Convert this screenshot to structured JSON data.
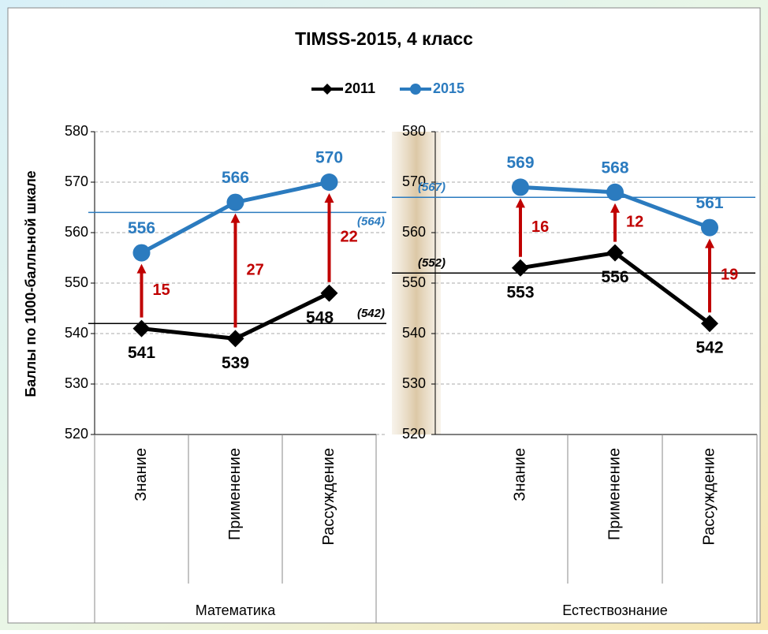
{
  "chart_data": [
    {
      "type": "line",
      "title": "TIMSS-2015, 4 класс",
      "y_label": "Баллы по 1000-балльной шкале",
      "group": "Математика",
      "categories": [
        "Знание",
        "Применение",
        "Рассуждение"
      ],
      "series": [
        {
          "name": "2011",
          "color": "#000000",
          "marker": "diamond",
          "values": [
            541,
            539,
            548
          ]
        },
        {
          "name": "2015",
          "color": "#2b7bbf",
          "marker": "circle",
          "values": [
            556,
            566,
            570
          ]
        }
      ],
      "differences": {
        "color": "#c00000",
        "values": [
          15,
          27,
          22
        ]
      },
      "reference_lines": [
        {
          "value": 542,
          "label": "(542)",
          "color": "#000000"
        },
        {
          "value": 564,
          "label": "(564)",
          "color": "#2b7bbf"
        }
      ],
      "ylim": [
        520,
        580
      ],
      "yticks": [
        520,
        530,
        540,
        550,
        560,
        570,
        580
      ],
      "grid": true,
      "legend": "top"
    },
    {
      "type": "line",
      "group": "Естествознание",
      "categories": [
        "Знание",
        "Применение",
        "Рассуждение"
      ],
      "series": [
        {
          "name": "2011",
          "color": "#000000",
          "marker": "diamond",
          "values": [
            553,
            556,
            542
          ]
        },
        {
          "name": "2015",
          "color": "#2b7bbf",
          "marker": "circle",
          "values": [
            569,
            568,
            561
          ]
        }
      ],
      "differences": {
        "color": "#c00000",
        "values": [
          16,
          12,
          19
        ]
      },
      "reference_lines": [
        {
          "value": 552,
          "label": "(552)",
          "color": "#000000"
        },
        {
          "value": 567,
          "label": "(567)",
          "color": "#2b7bbf"
        }
      ],
      "ylim": [
        520,
        580
      ],
      "yticks": [
        520,
        530,
        540,
        550,
        560,
        570,
        580
      ],
      "grid": true
    }
  ]
}
